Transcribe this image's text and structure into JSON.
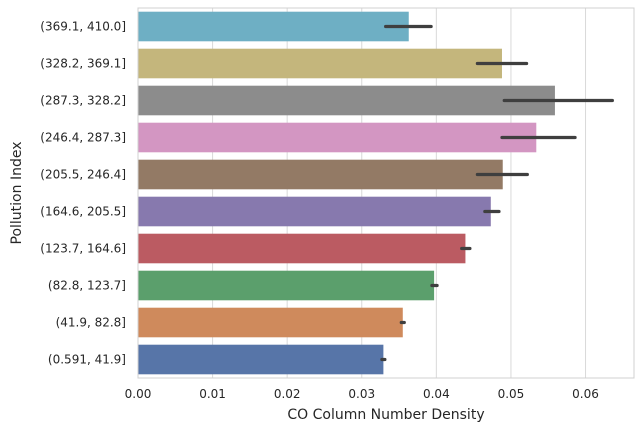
{
  "chart_data": {
    "type": "bar",
    "orientation": "horizontal",
    "xlabel": "CO Column Number Density",
    "ylabel": "Pollution Index",
    "xlim": [
      0,
      0.0665
    ],
    "xticks": [
      "0.00",
      "0.01",
      "0.02",
      "0.03",
      "0.04",
      "0.05",
      "0.06"
    ],
    "grid": "vertical",
    "categories": [
      "(369.1, 410.0]",
      "(328.2, 369.1]",
      "(287.3, 328.2]",
      "(246.4, 287.3]",
      "(205.5, 246.4]",
      "(164.6, 205.5]",
      "(123.7, 164.6]",
      "(82.8, 123.7]",
      "(41.9, 82.8]",
      "(0.591, 41.9]"
    ],
    "values": [
      0.0363,
      0.0488,
      0.0559,
      0.0534,
      0.0489,
      0.0473,
      0.0439,
      0.0397,
      0.0355,
      0.0329
    ],
    "error_low": [
      0.0332,
      0.0455,
      0.0491,
      0.0488,
      0.0455,
      0.0465,
      0.0434,
      0.0394,
      0.0353,
      0.0327
    ],
    "error_high": [
      0.0393,
      0.0521,
      0.0636,
      0.0586,
      0.0522,
      0.0484,
      0.0445,
      0.0401,
      0.0357,
      0.0331
    ],
    "colors": [
      "#6eafc4",
      "#c4b67c",
      "#8c8c8c",
      "#d396c2",
      "#937a65",
      "#8779ae",
      "#bb5b62",
      "#5b9f6c",
      "#cf8a5c",
      "#5775a8"
    ]
  }
}
